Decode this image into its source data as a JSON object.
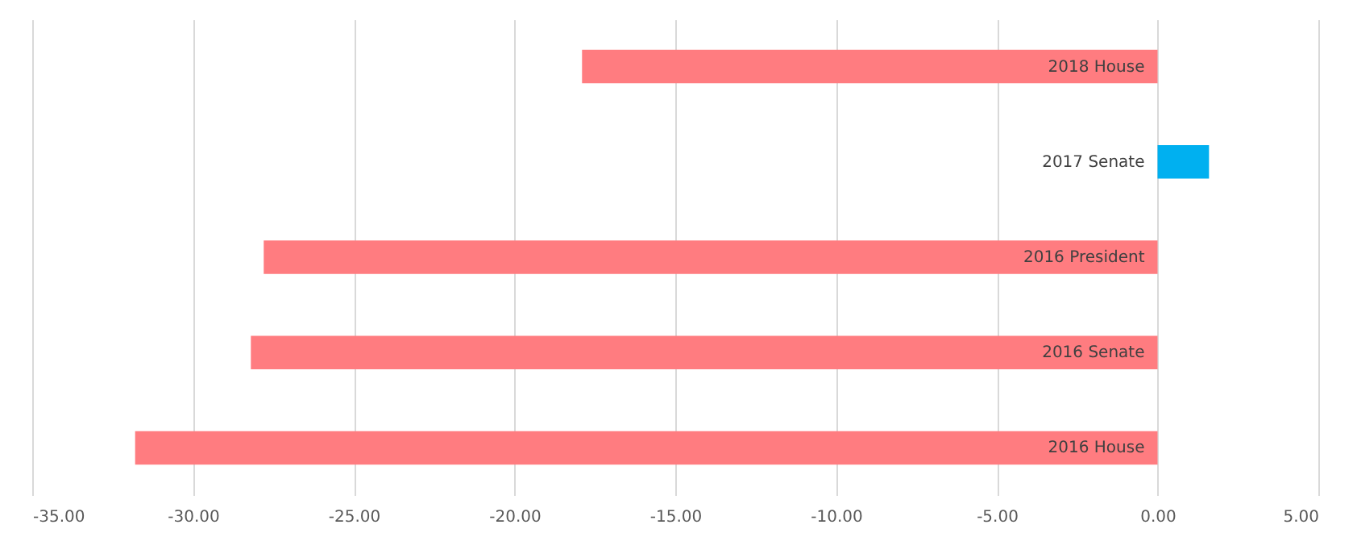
{
  "chart_data": {
    "type": "bar",
    "orientation": "horizontal",
    "categories": [
      "2018 House",
      "2017 Senate",
      "2016 President",
      "2016 Senate",
      "2016 House"
    ],
    "values": [
      -17.9,
      1.6,
      -27.8,
      -28.2,
      -31.8
    ],
    "colors": [
      "#ff7c80",
      "#00b0f0",
      "#ff7c80",
      "#ff7c80",
      "#ff7c80"
    ],
    "xlim": [
      -35,
      5
    ],
    "xticks": [
      {
        "value": -35,
        "label": "-35.00"
      },
      {
        "value": -30,
        "label": "-30.00"
      },
      {
        "value": -25,
        "label": "-25.00"
      },
      {
        "value": -20,
        "label": "-20.00"
      },
      {
        "value": -15,
        "label": "-15.00"
      },
      {
        "value": -10,
        "label": "-10.00"
      },
      {
        "value": -5,
        "label": "-5.00"
      },
      {
        "value": 0,
        "label": "0.00"
      },
      {
        "value": 5,
        "label": "5.00"
      }
    ],
    "grid": "x",
    "legend": false
  }
}
